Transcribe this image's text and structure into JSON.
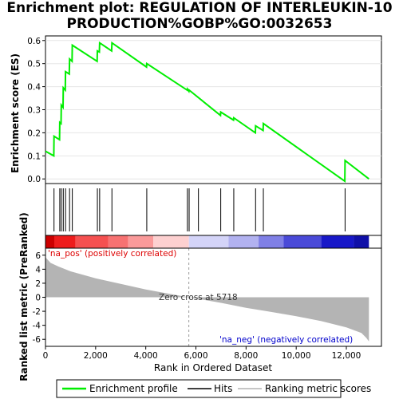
{
  "title_line1": "Enrichment plot: REGULATION OF INTERLEUKIN-10",
  "title_line2": "PRODUCTION%GOBP%GO:0032653",
  "colors": {
    "es_line": "#00ee00",
    "metric_fill": "#b4b4b4",
    "pos_label": "#dd0000",
    "neg_label": "#0000cc",
    "hits": "#000000"
  },
  "chart_data": {
    "type": "line",
    "es_panel": {
      "ylabel": "Enrichment score (ES)",
      "xlim": [
        0,
        13400
      ],
      "ylim": [
        -0.02,
        0.62
      ],
      "yticks": [
        0.0,
        0.1,
        0.2,
        0.3,
        0.4,
        0.5,
        0.6
      ],
      "ytick_labels": [
        "0.0",
        "0.1",
        "0.2",
        "0.3",
        "0.4",
        "0.5",
        "0.6"
      ],
      "es_curve": [
        [
          0,
          0.12
        ],
        [
          330,
          0.1
        ],
        [
          340,
          0.185
        ],
        [
          560,
          0.17
        ],
        [
          570,
          0.245
        ],
        [
          620,
          0.24
        ],
        [
          630,
          0.32
        ],
        [
          700,
          0.31
        ],
        [
          710,
          0.395
        ],
        [
          790,
          0.385
        ],
        [
          800,
          0.465
        ],
        [
          950,
          0.455
        ],
        [
          960,
          0.52
        ],
        [
          1060,
          0.51
        ],
        [
          1070,
          0.58
        ],
        [
          2060,
          0.51
        ],
        [
          2070,
          0.555
        ],
        [
          2150,
          0.55
        ],
        [
          2160,
          0.59
        ],
        [
          2640,
          0.555
        ],
        [
          2650,
          0.59
        ],
        [
          4030,
          0.485
        ],
        [
          4040,
          0.5
        ],
        [
          5650,
          0.385
        ],
        [
          5660,
          0.39
        ],
        [
          5720,
          0.38
        ],
        [
          5730,
          0.385
        ],
        [
          6980,
          0.275
        ],
        [
          6990,
          0.29
        ],
        [
          7500,
          0.255
        ],
        [
          7510,
          0.265
        ],
        [
          8370,
          0.2
        ],
        [
          8380,
          0.23
        ],
        [
          8680,
          0.21
        ],
        [
          8690,
          0.24
        ],
        [
          11940,
          -0.01
        ],
        [
          11950,
          0.08
        ],
        [
          12900,
          0.0
        ]
      ]
    },
    "hits": [
      340,
      570,
      630,
      710,
      800,
      960,
      1070,
      2070,
      2160,
      2650,
      4040,
      5660,
      5730,
      6100,
      6990,
      7510,
      8380,
      8690,
      11950
    ],
    "rank_panel": {
      "ylabel": "Ranked list metric (PreRanked)",
      "xlabel": "Rank in Ordered Dataset",
      "xlim": [
        0,
        13400
      ],
      "ylim": [
        -7,
        7
      ],
      "xticks": [
        0,
        2000,
        4000,
        6000,
        8000,
        10000,
        12000
      ],
      "xtick_labels": [
        "0",
        "2,000",
        "4,000",
        "6,000",
        "8,000",
        "10,000",
        "12,000"
      ],
      "yticks": [
        6,
        4,
        2,
        0,
        -2,
        -4,
        -6
      ],
      "ytick_labels": [
        "6",
        "4",
        "2",
        "0",
        "-2",
        "-4",
        "-6"
      ],
      "metric_curve": [
        [
          0,
          5.7
        ],
        [
          200,
          4.9
        ],
        [
          500,
          4.4
        ],
        [
          1000,
          3.7
        ],
        [
          2000,
          2.7
        ],
        [
          3000,
          1.9
        ],
        [
          4000,
          1.1
        ],
        [
          5000,
          0.45
        ],
        [
          5718,
          0.0
        ],
        [
          7000,
          -0.8
        ],
        [
          8000,
          -1.5
        ],
        [
          9000,
          -2.1
        ],
        [
          10000,
          -2.7
        ],
        [
          11000,
          -3.4
        ],
        [
          12000,
          -4.3
        ],
        [
          12600,
          -5.1
        ],
        [
          12800,
          -5.8
        ],
        [
          12900,
          -6.3
        ]
      ],
      "zero_cross_label": "Zero cross at 5718",
      "zero_cross": 5718,
      "pos_label": "'na_pos' (positively correlated)",
      "neg_label": "'na_neg' (negatively correlated)"
    },
    "heatmap_bar": {
      "segments": [
        [
          0,
          350,
          "#cc0000"
        ],
        [
          350,
          1200,
          "#ee1c1c"
        ],
        [
          1200,
          2500,
          "#f55050"
        ],
        [
          2500,
          3300,
          "#f77272"
        ],
        [
          3300,
          4300,
          "#fa9a9a"
        ],
        [
          4300,
          5720,
          "#fdd0d0"
        ],
        [
          5720,
          7300,
          "#d4d4f8"
        ],
        [
          7300,
          8500,
          "#b2b2f0"
        ],
        [
          8500,
          9500,
          "#8080e6"
        ],
        [
          9500,
          11000,
          "#4a4ad8"
        ],
        [
          11000,
          12300,
          "#1818c8"
        ],
        [
          12300,
          12900,
          "#1010a8"
        ]
      ]
    },
    "legend": [
      "Enrichment profile",
      "Hits",
      "Ranking metric scores"
    ]
  }
}
